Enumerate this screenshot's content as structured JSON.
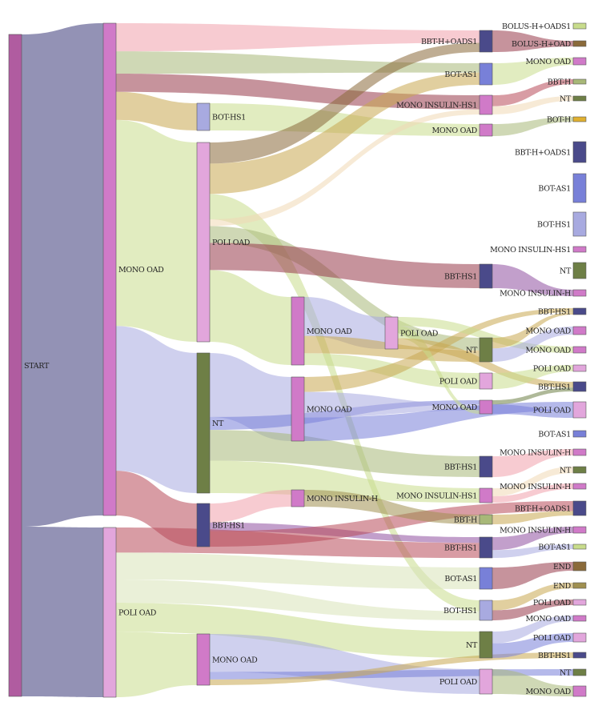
{
  "colors": {
    "start": "#b05ca0",
    "navy": "#3a3878",
    "mono": "#d07ac8",
    "poli": "#e2a6dc",
    "olive": "#6e7f46",
    "lav": "#a8aae0",
    "slate": "#4a4a8a",
    "blue": "#7880d8",
    "lime": "#c8dc8c",
    "peach": "#f0d8b4",
    "tan": "#c8a850",
    "dgold": "#a09050",
    "brown": "#8a6a3a",
    "gold": "#e0b030",
    "pink": "#f0a0ac",
    "sage": "#a8b878",
    "maroon": "#983a4a",
    "red": "#b84a5a",
    "mauve": "#9050a0",
    "pale": "#d8e4b8"
  },
  "nodes": [
    {
      "id": "start",
      "label": "START",
      "color": "start"
    },
    {
      "id": "s1_mono",
      "label": "MONO OAD",
      "color": "mono"
    },
    {
      "id": "s1_poli",
      "label": "POLI OAD",
      "color": "poli"
    },
    {
      "id": "c2_boths1",
      "label": "BOT-HS1",
      "color": "lav"
    },
    {
      "id": "c2_poli",
      "label": "POLI OAD",
      "color": "poli"
    },
    {
      "id": "c2_nt",
      "label": "NT",
      "color": "olive"
    },
    {
      "id": "c2_bbths1",
      "label": "BBT-HS1",
      "color": "slate"
    },
    {
      "id": "c2_mono",
      "label": "MONO OAD",
      "color": "mono"
    },
    {
      "id": "c3_mono_a",
      "label": "MONO OAD",
      "color": "mono"
    },
    {
      "id": "c3_mono_b",
      "label": "MONO OAD",
      "color": "mono"
    },
    {
      "id": "c3_mih",
      "label": "MONO INSULIN-H",
      "color": "mono"
    },
    {
      "id": "c4_poli",
      "label": "POLI OAD",
      "color": "poli"
    },
    {
      "id": "c5_bbthoads1",
      "label": "BBT-H+OADS1",
      "color": "slate"
    },
    {
      "id": "c5_botas1",
      "label": "BOT-AS1",
      "color": "blue"
    },
    {
      "id": "c5_mihs1",
      "label": "MONO INSULIN-HS1",
      "color": "mono"
    },
    {
      "id": "c5_mono1",
      "label": "MONO OAD",
      "color": "mono"
    },
    {
      "id": "c5_bbths1_a",
      "label": "BBT-HS1",
      "color": "slate"
    },
    {
      "id": "c5_nt1",
      "label": "NT",
      "color": "olive"
    },
    {
      "id": "c5_poli1",
      "label": "POLI OAD",
      "color": "poli"
    },
    {
      "id": "c5_mono2",
      "label": "MONO OAD",
      "color": "mono"
    },
    {
      "id": "c5_bbths1_b",
      "label": "BBT-HS1",
      "color": "slate"
    },
    {
      "id": "c5_mihs1_b",
      "label": "MONO INSULIN-HS1",
      "color": "mono"
    },
    {
      "id": "c5_bbth",
      "label": "BBT-H",
      "color": "sage"
    },
    {
      "id": "c5_bbths1_c",
      "label": "BBT-HS1",
      "color": "slate"
    },
    {
      "id": "c5_botas1_b",
      "label": "BOT-AS1",
      "color": "blue"
    },
    {
      "id": "c5_boths1",
      "label": "BOT-HS1",
      "color": "lav"
    },
    {
      "id": "c5_nt2",
      "label": "NT",
      "color": "olive"
    },
    {
      "id": "c5_poli2",
      "label": "POLI OAD",
      "color": "poli"
    },
    {
      "id": "f_bolus_oads1",
      "label": "BOLUS-H+OADS1",
      "color": "lime"
    },
    {
      "id": "f_bolus_oad",
      "label": "BOLUS-H+OAD",
      "color": "brown"
    },
    {
      "id": "f_mono_a",
      "label": "MONO OAD",
      "color": "mono"
    },
    {
      "id": "f_bbth_a",
      "label": "BBT-H",
      "color": "sage"
    },
    {
      "id": "f_nt_a",
      "label": "NT",
      "color": "olive"
    },
    {
      "id": "f_both",
      "label": "BOT-H",
      "color": "gold"
    },
    {
      "id": "f_bbthoads1",
      "label": "BBT-H+OADS1",
      "color": "slate"
    },
    {
      "id": "f_botas1_a",
      "label": "BOT-AS1",
      "color": "blue"
    },
    {
      "id": "f_boths1",
      "label": "BOT-HS1",
      "color": "lav"
    },
    {
      "id": "f_mihs1",
      "label": "MONO INSULIN-HS1",
      "color": "mono"
    },
    {
      "id": "f_nt_b",
      "label": "NT",
      "color": "olive"
    },
    {
      "id": "f_mih_a",
      "label": "MONO INSULIN-H",
      "color": "mono"
    },
    {
      "id": "f_bbths1_a",
      "label": "BBT-HS1",
      "color": "slate"
    },
    {
      "id": "f_mono_b",
      "label": "MONO OAD",
      "color": "mono"
    },
    {
      "id": "f_mono_c",
      "label": "MONO OAD",
      "color": "mono"
    },
    {
      "id": "f_poli_a",
      "label": "POLI OAD",
      "color": "poli"
    },
    {
      "id": "f_bbths1_b",
      "label": "BBT-HS1",
      "color": "slate"
    },
    {
      "id": "f_poli_b",
      "label": "POLI OAD",
      "color": "poli"
    },
    {
      "id": "f_botas1_b",
      "label": "BOT-AS1",
      "color": "blue"
    },
    {
      "id": "f_mih_b",
      "label": "MONO INSULIN-H",
      "color": "mono"
    },
    {
      "id": "f_nt_c",
      "label": "NT",
      "color": "olive"
    },
    {
      "id": "f_mih_c",
      "label": "MONO INSULIN-H",
      "color": "mono"
    },
    {
      "id": "f_bbthoads1_b",
      "label": "BBT-H+OADS1",
      "color": "slate"
    },
    {
      "id": "f_mih_d",
      "label": "MONO INSULIN-H",
      "color": "mono"
    },
    {
      "id": "f_botas1_c",
      "label": "BOT-AS1",
      "color": "lime"
    },
    {
      "id": "f_end_a",
      "label": "END",
      "color": "brown"
    },
    {
      "id": "f_end_b",
      "label": "END",
      "color": "dgold"
    },
    {
      "id": "f_poli_c",
      "label": "POLI OAD",
      "color": "poli"
    },
    {
      "id": "f_mono_d",
      "label": "MONO OAD",
      "color": "mono"
    },
    {
      "id": "f_poli_d",
      "label": "POLI OAD",
      "color": "poli"
    },
    {
      "id": "f_bbths1_c",
      "label": "BBT-HS1",
      "color": "slate"
    },
    {
      "id": "f_nt_d",
      "label": "NT",
      "color": "olive"
    },
    {
      "id": "f_mono_e",
      "label": "MONO OAD",
      "color": "mono"
    }
  ],
  "links": [
    {
      "source": "start",
      "target": "s1_mono",
      "value": 615,
      "color": "navy"
    },
    {
      "source": "start",
      "target": "s1_poli",
      "value": 212,
      "color": "navy"
    },
    {
      "source": "s1_mono",
      "target": "c5_bbthoads1",
      "value": 34,
      "color": "pink"
    },
    {
      "source": "s1_mono",
      "target": "c5_botas1",
      "value": 27,
      "color": "sage"
    },
    {
      "source": "s1_mono",
      "target": "c5_mihs1",
      "value": 22,
      "color": "maroon"
    },
    {
      "source": "s1_mono",
      "target": "c2_boths1",
      "value": 34,
      "color": "tan"
    },
    {
      "source": "s1_mono",
      "target": "c2_poli",
      "value": 249,
      "color": "lime"
    },
    {
      "source": "s1_mono",
      "target": "c2_nt",
      "value": 175,
      "color": "lav"
    },
    {
      "source": "s1_mono",
      "target": "c2_bbths1",
      "value": 54,
      "color": "red"
    },
    {
      "source": "c2_boths1",
      "target": "c5_mono1",
      "value": 15,
      "color": "lime"
    },
    {
      "source": "c2_poli",
      "target": "c5_bbthoads1",
      "value": 25,
      "color": "brown"
    },
    {
      "source": "c2_poli",
      "target": "c5_botas1",
      "value": 36,
      "color": "tan"
    },
    {
      "source": "c2_poli",
      "target": "c5_boths1",
      "value": 30,
      "color": "lime"
    },
    {
      "source": "c2_poli",
      "target": "c5_mihs1",
      "value": 8,
      "color": "peach"
    },
    {
      "source": "c2_poli",
      "target": "c5_nt1",
      "value": 20,
      "color": "sage"
    },
    {
      "source": "c2_poli",
      "target": "c5_bbths1_a",
      "value": 32,
      "color": "maroon"
    },
    {
      "source": "c2_poli",
      "target": "c3_mono_a",
      "value": 85,
      "color": "lime"
    },
    {
      "source": "c2_nt",
      "target": "c3_mono_b",
      "value": 79,
      "color": "lav"
    },
    {
      "source": "c2_nt",
      "target": "c5_mono2",
      "value": 16,
      "color": "blue"
    },
    {
      "source": "c2_nt",
      "target": "c5_bbths1_b",
      "value": 38,
      "color": "sage"
    },
    {
      "source": "c2_nt",
      "target": "c5_mihs1_b",
      "value": 40,
      "color": "lime"
    },
    {
      "source": "c2_bbths1",
      "target": "c3_mih",
      "value": 22,
      "color": "pink"
    },
    {
      "source": "c2_bbths1",
      "target": "c5_bbths1_c",
      "value": 10,
      "color": "mauve"
    },
    {
      "source": "c2_bbths1",
      "target": "f_bbthoads1_b",
      "value": 18,
      "color": "red"
    },
    {
      "source": "c3_mono_a",
      "target": "c4_poli",
      "value": 40,
      "color": "lav"
    },
    {
      "source": "c3_mono_a",
      "target": "c5_nt1",
      "value": 18,
      "color": "tan"
    },
    {
      "source": "c3_mono_a",
      "target": "c5_poli1",
      "value": 12,
      "color": "lime"
    },
    {
      "source": "c3_mono_b",
      "target": "f_bbths1_a",
      "value": 14,
      "color": "tan"
    },
    {
      "source": "c3_mono_b",
      "target": "c5_mono2",
      "value": 24,
      "color": "lav"
    },
    {
      "source": "c3_mono_b",
      "target": "f_poli_b",
      "value": 22,
      "color": "blue"
    },
    {
      "source": "c3_mih",
      "target": "c5_bbth",
      "value": 12,
      "color": "dgold"
    },
    {
      "source": "c4_poli",
      "target": "f_mono_c",
      "value": 10,
      "color": "lime"
    },
    {
      "source": "c4_poli",
      "target": "c5_mono2",
      "value": 14,
      "color": "lime"
    },
    {
      "source": "c4_poli",
      "target": "f_bbths1_b",
      "value": 12,
      "color": "tan"
    },
    {
      "source": "s1_poli",
      "target": "c5_bbths1_c",
      "value": 26,
      "color": "red"
    },
    {
      "source": "s1_poli",
      "target": "c5_botas1_b",
      "value": 28,
      "color": "pale"
    },
    {
      "source": "s1_poli",
      "target": "c5_boths1",
      "value": 24,
      "color": "pale"
    },
    {
      "source": "s1_poli",
      "target": "c5_nt2",
      "value": 30,
      "color": "lime"
    },
    {
      "source": "s1_poli",
      "target": "c2_mono",
      "value": 68,
      "color": "lime"
    },
    {
      "source": "c2_mono",
      "target": "c5_poli2",
      "value": 40,
      "color": "lav"
    },
    {
      "source": "c2_mono",
      "target": "f_nt_d",
      "value": 8,
      "color": "blue"
    },
    {
      "source": "c2_mono",
      "target": "f_bbths1_c",
      "value": 6,
      "color": "tan"
    },
    {
      "source": "c5_bbthoads1",
      "target": "f_bolus_oad",
      "value": 10,
      "color": "maroon"
    },
    {
      "source": "c5_botas1",
      "target": "f_mono_a",
      "value": 12,
      "color": "lime"
    },
    {
      "source": "c5_mihs1",
      "target": "f_bbth_a",
      "value": 8,
      "color": "red"
    },
    {
      "source": "c5_mihs1",
      "target": "f_nt_a",
      "value": 6,
      "color": "peach"
    },
    {
      "source": "c5_mono1",
      "target": "f_both",
      "value": 8,
      "color": "sage"
    },
    {
      "source": "c5_bbths1_a",
      "target": "f_mih_a",
      "value": 8,
      "color": "mauve"
    },
    {
      "source": "c5_nt1",
      "target": "f_bbths1_a",
      "value": 8,
      "color": "tan"
    },
    {
      "source": "c5_nt1",
      "target": "f_mono_b",
      "value": 10,
      "color": "lav"
    },
    {
      "source": "c5_poli1",
      "target": "f_poli_a",
      "value": 8,
      "color": "lime"
    },
    {
      "source": "c5_mono2",
      "target": "f_bbths1_b",
      "value": 8,
      "color": "olive"
    },
    {
      "source": "c5_mono2",
      "target": "f_poli_b",
      "value": 18,
      "color": "blue"
    },
    {
      "source": "c5_bbths1_b",
      "target": "f_mih_b",
      "value": 10,
      "color": "pink"
    },
    {
      "source": "c5_mihs1_b",
      "target": "f_nt_c",
      "value": 10,
      "color": "peach"
    },
    {
      "source": "c5_mihs1_b",
      "target": "f_mih_c",
      "value": 8,
      "color": "pink"
    },
    {
      "source": "c5_bbth",
      "target": "f_bbthoads1_b",
      "value": 8,
      "color": "tan"
    },
    {
      "source": "c5_bbths1_c",
      "target": "f_mih_d",
      "value": 10,
      "color": "mauve"
    },
    {
      "source": "c5_bbths1_c",
      "target": "f_botas1_c",
      "value": 6,
      "color": "lav"
    },
    {
      "source": "c5_botas1_b",
      "target": "f_end_a",
      "value": 12,
      "color": "maroon"
    },
    {
      "source": "c5_boths1",
      "target": "f_end_b",
      "value": 8,
      "color": "tan"
    },
    {
      "source": "c5_boths1",
      "target": "f_poli_c",
      "value": 8,
      "color": "maroon"
    },
    {
      "source": "c5_nt2",
      "target": "f_mono_d",
      "value": 8,
      "color": "lav"
    },
    {
      "source": "c5_nt2",
      "target": "f_poli_d",
      "value": 10,
      "color": "blue"
    },
    {
      "source": "c5_poli2",
      "target": "f_mono_e",
      "value": 12,
      "color": "sage"
    }
  ]
}
